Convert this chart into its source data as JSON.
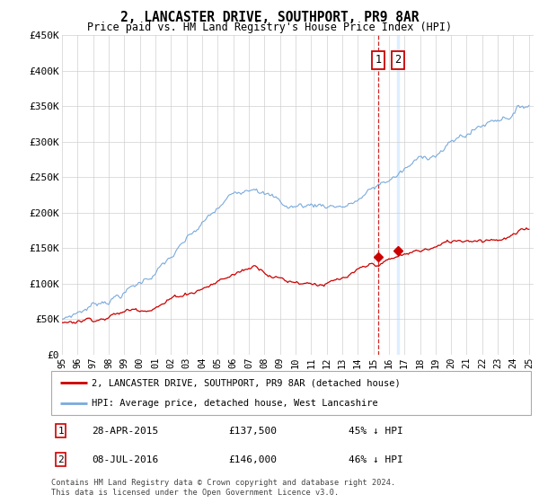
{
  "title": "2, LANCASTER DRIVE, SOUTHPORT, PR9 8AR",
  "subtitle": "Price paid vs. HM Land Registry's House Price Index (HPI)",
  "ylim": [
    0,
    450000
  ],
  "yticks": [
    0,
    50000,
    100000,
    150000,
    200000,
    250000,
    300000,
    350000,
    400000,
    450000
  ],
  "ytick_labels": [
    "£0",
    "£50K",
    "£100K",
    "£150K",
    "£200K",
    "£250K",
    "£300K",
    "£350K",
    "£400K",
    "£450K"
  ],
  "hpi_color": "#7aaadd",
  "price_color": "#cc0000",
  "annotation_box_color": "#cc0000",
  "dashed_line_color": "#cc0000",
  "band_color": "#ddeeff",
  "transaction1_date": "28-APR-2015",
  "transaction1_price": 137500,
  "transaction1_pct": "45% ↓ HPI",
  "transaction2_date": "08-JUL-2016",
  "transaction2_price": 146000,
  "transaction2_pct": "46% ↓ HPI",
  "legend1_label": "2, LANCASTER DRIVE, SOUTHPORT, PR9 8AR (detached house)",
  "legend2_label": "HPI: Average price, detached house, West Lancashire",
  "footer": "Contains HM Land Registry data © Crown copyright and database right 2024.\nThis data is licensed under the Open Government Licence v3.0.",
  "background_color": "#ffffff",
  "grid_color": "#cccccc"
}
